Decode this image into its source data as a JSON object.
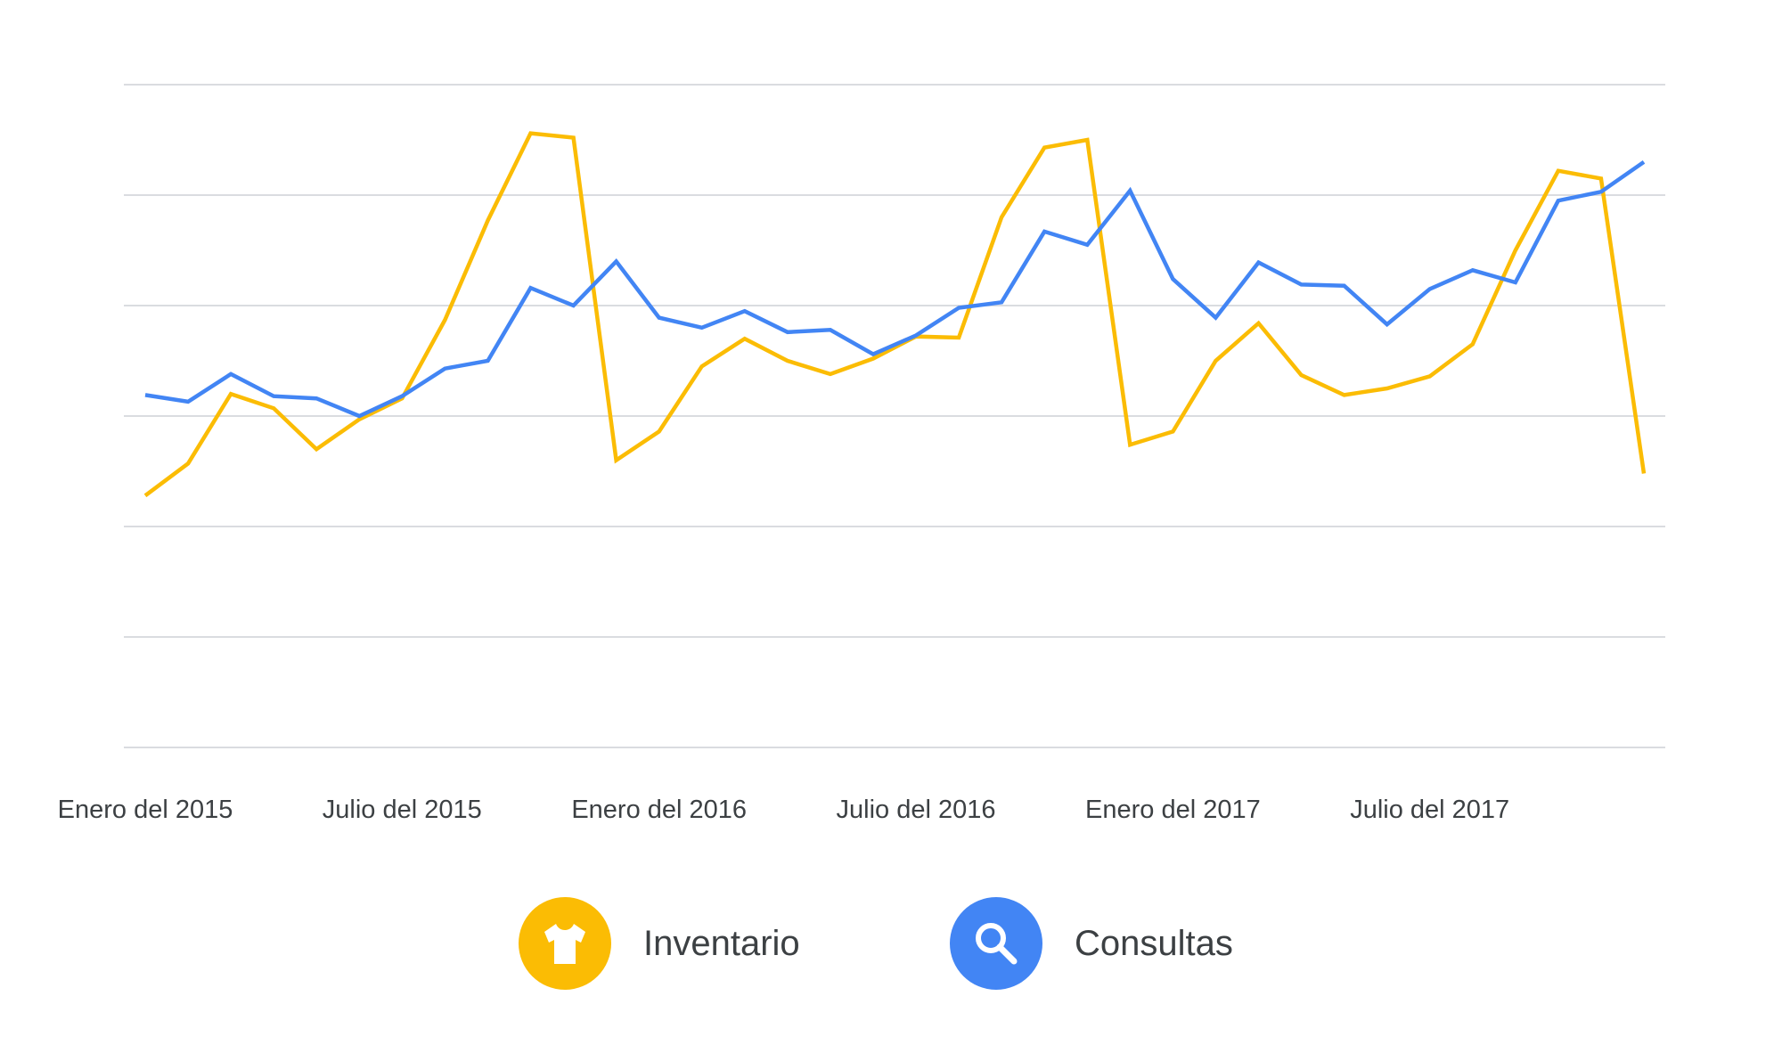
{
  "colors": {
    "inventory": "#fbbc04",
    "queries": "#4285f4",
    "grid": "#dadce0",
    "text": "#3c4043"
  },
  "legend": {
    "inventory_label": "Inventario",
    "inventory_icon": "tshirt-icon",
    "queries_label": "Consultas",
    "queries_icon": "search-icon"
  },
  "chart_data": {
    "type": "line",
    "title": "",
    "xlabel": "",
    "ylabel": "",
    "grid": true,
    "legend_position": "bottom-center",
    "ylim": [
      0,
      6
    ],
    "x": [
      "2015-01",
      "2015-02",
      "2015-03",
      "2015-04",
      "2015-05",
      "2015-06",
      "2015-07",
      "2015-08",
      "2015-09",
      "2015-10",
      "2015-11",
      "2015-12",
      "2016-01",
      "2016-02",
      "2016-03",
      "2016-04",
      "2016-05",
      "2016-06",
      "2016-07",
      "2016-08",
      "2016-09",
      "2016-10",
      "2016-11",
      "2016-12",
      "2017-01",
      "2017-02",
      "2017-03",
      "2017-04",
      "2017-05",
      "2017-06",
      "2017-07",
      "2017-08",
      "2017-09",
      "2017-10",
      "2017-11",
      "2017-12"
    ],
    "x_tick_labels": [
      {
        "x": "2015-01",
        "label": "Enero del 2015"
      },
      {
        "x": "2015-07",
        "label": "Julio del 2015"
      },
      {
        "x": "2016-01",
        "label": "Enero del 2016"
      },
      {
        "x": "2016-07",
        "label": "Julio del 2016"
      },
      {
        "x": "2017-01",
        "label": "Enero del 2017"
      },
      {
        "x": "2017-07",
        "label": "Julio del 2017"
      }
    ],
    "series": [
      {
        "name": "Inventario",
        "color": "#fbbc04",
        "values": [
          2.28,
          2.57,
          3.2,
          3.07,
          2.7,
          2.97,
          3.16,
          3.87,
          4.77,
          5.56,
          5.52,
          2.6,
          2.86,
          3.45,
          3.7,
          3.5,
          3.38,
          3.52,
          3.72,
          3.71,
          4.8,
          5.43,
          5.5,
          2.74,
          2.86,
          3.5,
          3.84,
          3.37,
          3.19,
          3.25,
          3.36,
          3.65,
          4.5,
          5.22,
          5.15,
          2.48
        ]
      },
      {
        "name": "Consultas",
        "color": "#4285f4",
        "values": [
          3.19,
          3.13,
          3.38,
          3.18,
          3.16,
          3.0,
          3.18,
          3.43,
          3.5,
          4.16,
          4.0,
          4.4,
          3.89,
          3.8,
          3.95,
          3.76,
          3.78,
          3.56,
          3.73,
          3.98,
          4.03,
          4.67,
          4.55,
          5.04,
          4.24,
          3.89,
          4.39,
          4.19,
          4.18,
          3.83,
          4.15,
          4.32,
          4.21,
          4.95,
          5.03,
          5.3
        ]
      }
    ]
  }
}
